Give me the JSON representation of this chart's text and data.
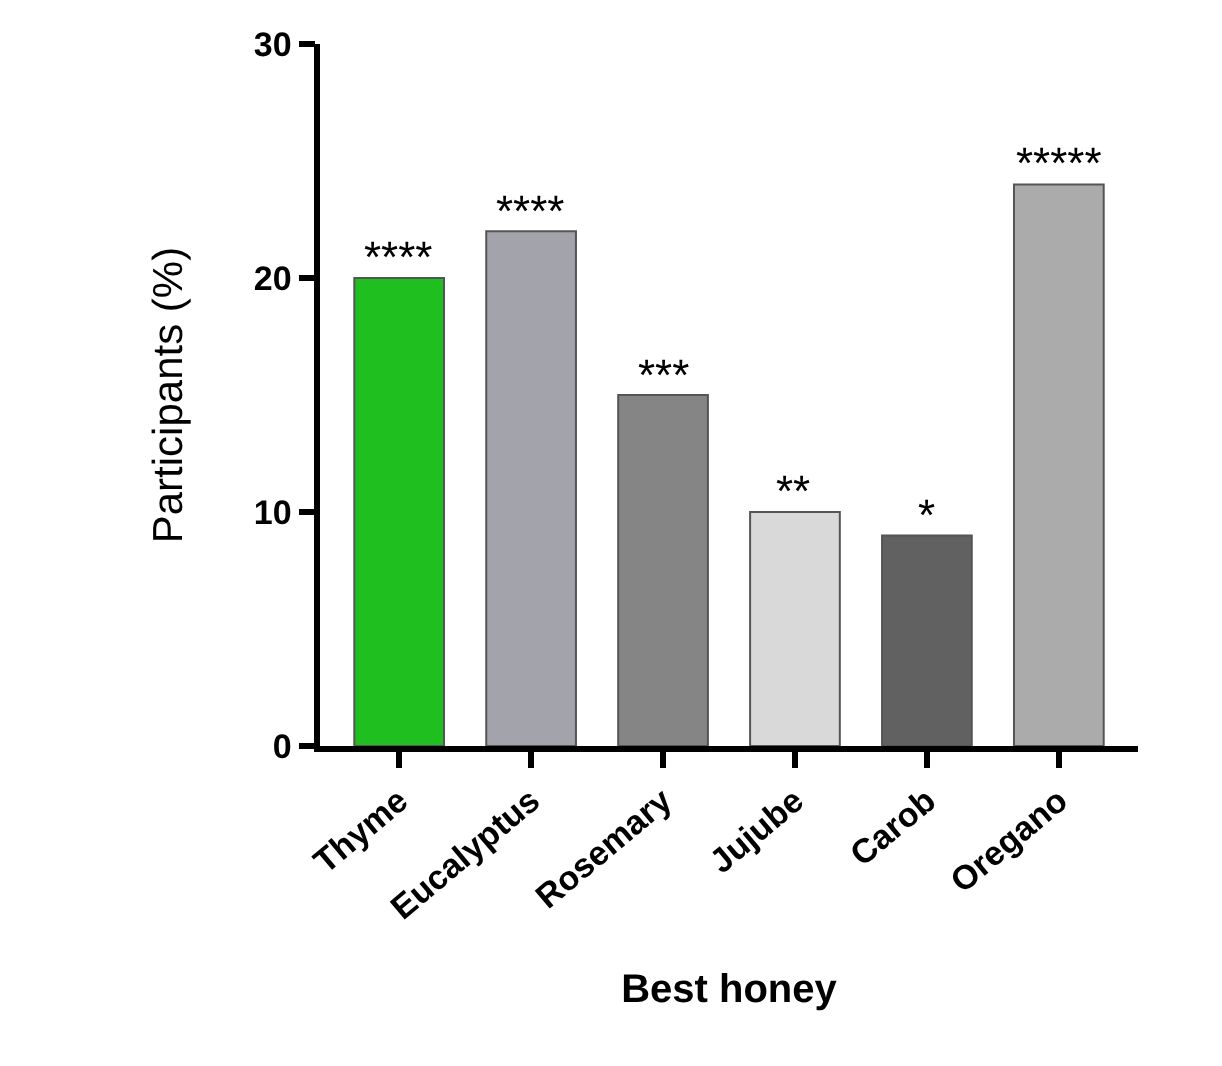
{
  "chart_data": {
    "type": "bar",
    "xlabel": "Best honey",
    "ylabel": "Participants (%)",
    "categories": [
      "Thyme",
      "Eucalyptus",
      "Rosemary",
      "Jujube",
      "Carob",
      "Oregano"
    ],
    "values": [
      20,
      22,
      15,
      10,
      9,
      24
    ],
    "colors": [
      "#1fbf1f",
      "#a3a3ab",
      "#858585",
      "#d9d9d9",
      "#616161",
      "#ababab"
    ],
    "ylim": [
      0,
      30
    ],
    "yticks": [
      0,
      10,
      20,
      30
    ],
    "grid": false,
    "legend": false,
    "annotations": [
      {
        "text": "****",
        "x": "Thyme",
        "y": 20
      },
      {
        "text": "****",
        "x": "Eucalyptus",
        "y": 22
      },
      {
        "text": "***",
        "x": "Rosemary",
        "y": 15
      },
      {
        "text": "**",
        "x": "Jujube",
        "y": 10
      },
      {
        "text": "*",
        "x": "Carob",
        "y": 9
      },
      {
        "text": "*****",
        "x": "Oregano",
        "y": 24
      }
    ]
  }
}
